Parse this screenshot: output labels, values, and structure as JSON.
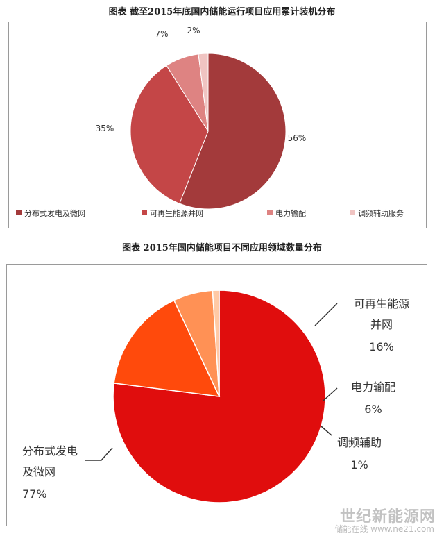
{
  "chart_data": [
    {
      "type": "pie",
      "title": "图表   截至2015年底国内储能运行项目应用累计装机分布",
      "categories": [
        "分布式发电及微网",
        "可再生能源并网",
        "电力输配",
        "调频辅助服务"
      ],
      "values": [
        56,
        35,
        7,
        2
      ],
      "value_labels": [
        "56%",
        "35%",
        "7%",
        "2%"
      ],
      "colors": [
        "#a33a3b",
        "#c44647",
        "#de8382",
        "#f0c4c2"
      ],
      "legend_position": "bottom"
    },
    {
      "type": "pie",
      "title": "图表   2015年国内储能项目不同应用领域数量分布",
      "categories": [
        "分布式发电及微网",
        "可再生能源并网",
        "电力输配",
        "调频辅助"
      ],
      "values": [
        77,
        16,
        6,
        1
      ],
      "value_labels": [
        "77%",
        "16%",
        "6%",
        "1%"
      ],
      "colors": [
        "#e00d0d",
        "#ff4a0c",
        "#ff9155",
        "#ffc9a5"
      ]
    }
  ],
  "watermark": {
    "line1": "世纪新能源网",
    "line2": "储能在线 www.ne21.com"
  }
}
